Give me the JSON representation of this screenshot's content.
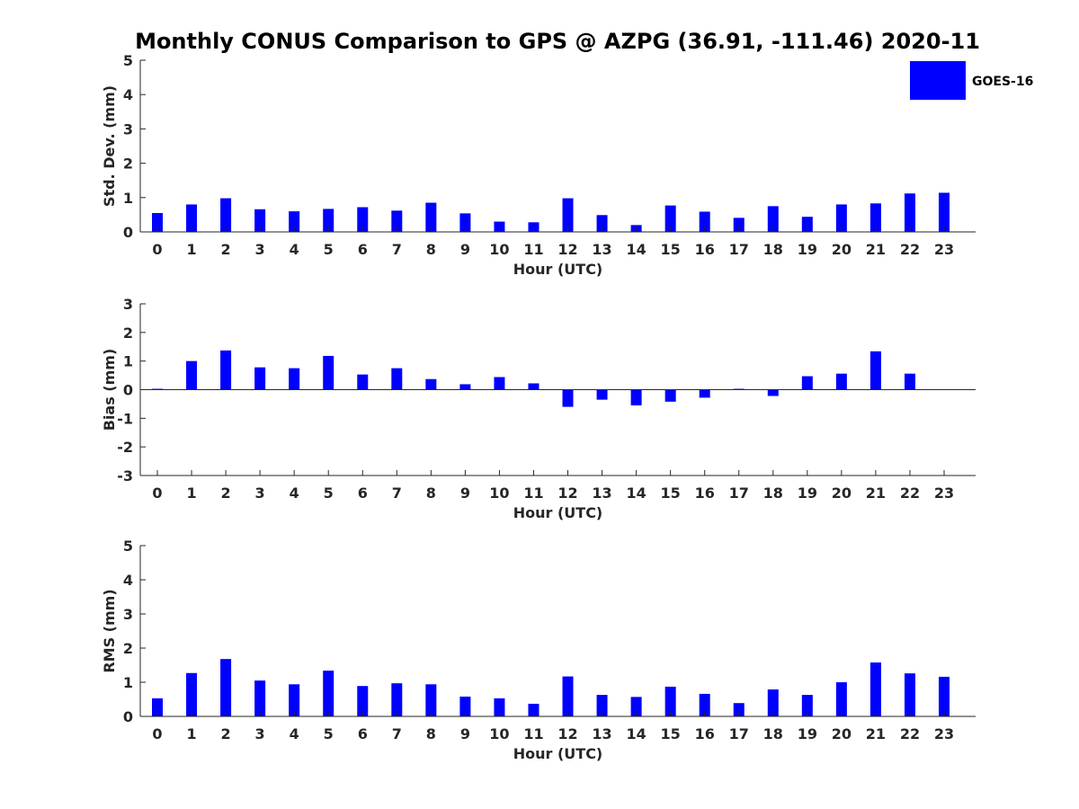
{
  "chart_data": {
    "title": "Monthly CONUS Comparison to GPS @ AZPG (36.91, -111.46) 2020-11",
    "legend": {
      "label": "GOES-16",
      "color": "#0000ff",
      "placement": "top-right"
    },
    "panels": [
      {
        "type": "bar",
        "ylabel": "Std. Dev. (mm)",
        "xlabel": "Hour (UTC)",
        "ylim": [
          0,
          5
        ],
        "yticks": [
          0,
          1,
          2,
          3,
          4,
          5
        ],
        "categories": [
          "0",
          "1",
          "2",
          "3",
          "4",
          "5",
          "6",
          "7",
          "8",
          "9",
          "10",
          "11",
          "12",
          "13",
          "14",
          "15",
          "16",
          "17",
          "18",
          "19",
          "20",
          "21",
          "22",
          "23"
        ],
        "series": [
          {
            "name": "GOES-16",
            "values": [
              0.55,
              0.8,
              0.98,
              0.66,
              0.6,
              0.67,
              0.72,
              0.62,
              0.85,
              0.54,
              0.3,
              0.28,
              0.98,
              0.49,
              0.2,
              0.77,
              0.59,
              0.41,
              0.75,
              0.44,
              0.8,
              0.83,
              1.12,
              1.14
            ]
          }
        ]
      },
      {
        "type": "bar",
        "ylabel": "Bias (mm)",
        "xlabel": "Hour (UTC)",
        "ylim": [
          -3,
          3
        ],
        "yticks": [
          -3,
          -2,
          -1,
          0,
          1,
          2,
          3
        ],
        "categories": [
          "0",
          "1",
          "2",
          "3",
          "4",
          "5",
          "6",
          "7",
          "8",
          "9",
          "10",
          "11",
          "12",
          "13",
          "14",
          "15",
          "16",
          "17",
          "18",
          "19",
          "20",
          "21",
          "22",
          "23"
        ],
        "series": [
          {
            "name": "GOES-16",
            "values": [
              0.03,
              1.0,
              1.37,
              0.78,
              0.75,
              1.18,
              0.53,
              0.75,
              0.37,
              0.19,
              0.44,
              0.22,
              -0.6,
              -0.35,
              -0.55,
              -0.42,
              -0.28,
              0.03,
              -0.22,
              0.47,
              0.56,
              1.34,
              0.56,
              0.0
            ]
          }
        ]
      },
      {
        "type": "bar",
        "ylabel": "RMS (mm)",
        "xlabel": "Hour (UTC)",
        "ylim": [
          0,
          5
        ],
        "yticks": [
          0,
          1,
          2,
          3,
          4,
          5
        ],
        "categories": [
          "0",
          "1",
          "2",
          "3",
          "4",
          "5",
          "6",
          "7",
          "8",
          "9",
          "10",
          "11",
          "12",
          "13",
          "14",
          "15",
          "16",
          "17",
          "18",
          "19",
          "20",
          "21",
          "22",
          "23"
        ],
        "series": [
          {
            "name": "GOES-16",
            "values": [
              0.53,
              1.27,
              1.68,
              1.05,
              0.94,
              1.34,
              0.89,
              0.97,
              0.94,
              0.58,
              0.53,
              0.37,
              1.17,
              0.63,
              0.57,
              0.87,
              0.66,
              0.39,
              0.79,
              0.63,
              1.0,
              1.58,
              1.26,
              1.16
            ]
          }
        ]
      }
    ]
  }
}
